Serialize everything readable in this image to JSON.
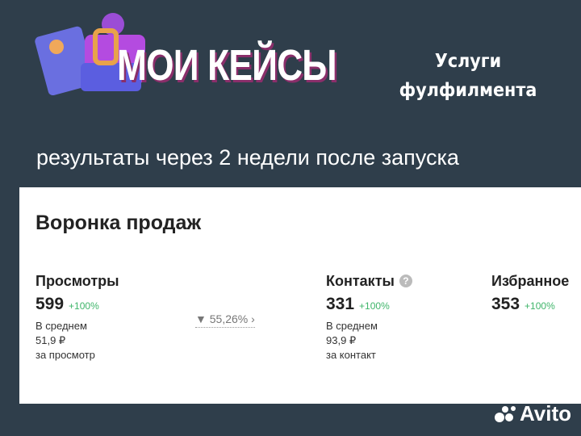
{
  "banner": {
    "title": "МОИ КЕЙСЫ",
    "service_line1": "Услуги",
    "service_line2": "фулфилмента",
    "subtitle": "результаты через 2 недели после запуска"
  },
  "funnel": {
    "title": "Воронка продаж",
    "views": {
      "label": "Просмотры",
      "value": "599",
      "change": "+100%",
      "avg1": "В среднем",
      "avg2": "51,9 ₽",
      "avg3": "за просмотр"
    },
    "conversion": "55,26%",
    "contacts": {
      "label": "Контакты",
      "value": "331",
      "change": "+100%",
      "avg1": "В среднем",
      "avg2": "93,9 ₽",
      "avg3": "за контакт"
    },
    "favorites": {
      "label": "Избранное",
      "value": "353",
      "change": "+100%"
    }
  },
  "watermark": "Avito",
  "colors": {
    "background": "#2f3e4b",
    "positive": "#3fb56a"
  }
}
